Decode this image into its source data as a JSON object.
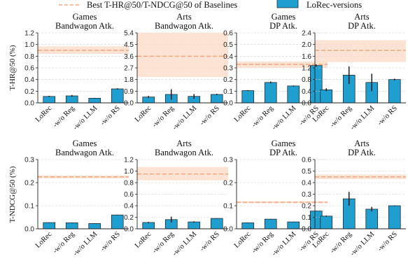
{
  "legend": {
    "baseline_label": "Best T-HR@50/T-NDCG@50 of Baselines",
    "bars_label": "LoRec-versions"
  },
  "colors": {
    "bar": "#1f9fcf",
    "baseline_line": "#f4a57e",
    "baseline_band": "#fbd9c4"
  },
  "y_labels": [
    "T-HR@50 (%)",
    "T-NDCG@50 (%)"
  ],
  "chart_data": [
    {
      "type": "bar",
      "row": 0,
      "title": [
        "Games",
        "Bandwagon Atk."
      ],
      "categories": [
        "LoRec",
        "-w/o Reg",
        "-w/o LLM",
        "-w/o RS"
      ],
      "values": [
        0.11,
        0.12,
        0.08,
        0.24
      ],
      "errors": [
        0.01,
        0.015,
        0.005,
        0.01
      ],
      "baseline": 0.9,
      "baseline_band": [
        0.84,
        0.97
      ],
      "ylim": [
        0,
        1.2
      ],
      "yticks": [
        0,
        0.2,
        0.4,
        0.6,
        0.8,
        1.0,
        1.2
      ],
      "ytick_labels": [
        "0.0",
        "0.2",
        "0.4",
        "0.6",
        "0.8",
        "1.0",
        "1.2"
      ]
    },
    {
      "type": "bar",
      "row": 0,
      "title": [
        "Arts",
        "Bandwagon Atk."
      ],
      "categories": [
        "LoRec",
        "-w/o Reg",
        "-w/o LLM",
        "-w/o RS"
      ],
      "values": [
        0.45,
        0.65,
        0.5,
        0.65
      ],
      "errors": [
        0.08,
        0.4,
        0.18,
        0.05
      ],
      "baseline": 3.6,
      "baseline_band": [
        2.0,
        5.4
      ],
      "ylim": [
        0,
        5.4
      ],
      "yticks": [
        0,
        0.9,
        1.8,
        2.7,
        3.6,
        4.5,
        5.4
      ],
      "ytick_labels": [
        "0.0",
        "0.9",
        "1.8",
        "2.7",
        "3.6",
        "4.5",
        "5.4"
      ]
    },
    {
      "type": "bar",
      "row": 0,
      "title": [
        "Games",
        "DP Atk."
      ],
      "categories": [
        "LoRec",
        "-w/o Reg",
        "-w/o LLM",
        "-w/o RS"
      ],
      "values": [
        0.105,
        0.175,
        0.145,
        0.32
      ],
      "errors": [
        0.004,
        0.008,
        0.004,
        0.01
      ],
      "baseline": 0.33,
      "baseline_band": [
        0.3,
        0.355
      ],
      "ylim": [
        0,
        0.6
      ],
      "yticks": [
        0,
        0.1,
        0.2,
        0.3,
        0.4,
        0.5,
        0.6
      ],
      "ytick_labels": [
        "0.0",
        "0.1",
        "0.2",
        "0.3",
        "0.4",
        "0.5",
        "0.6"
      ]
    },
    {
      "type": "bar",
      "row": 0,
      "title": [
        "Arts",
        "DP Atk."
      ],
      "categories": [
        "LoRec",
        "-w/o Reg",
        "-w/o LLM",
        "-w/o RS"
      ],
      "values": [
        0.45,
        0.95,
        0.7,
        0.8
      ],
      "errors": [
        0.05,
        0.3,
        0.3,
        0.03
      ],
      "baseline": 1.8,
      "baseline_band": [
        1.4,
        2.15
      ],
      "ylim": [
        0,
        2.4
      ],
      "yticks": [
        0,
        0.4,
        0.8,
        1.2,
        1.6,
        2.0,
        2.4
      ],
      "ytick_labels": [
        "0.0",
        "0.4",
        "0.8",
        "1.2",
        "1.6",
        "2.0",
        "2.4"
      ]
    },
    {
      "type": "bar",
      "row": 1,
      "title": [
        "Games",
        "Bandwagon Atk."
      ],
      "categories": [
        "LoRec",
        "-w/o Reg",
        "-w/o LLM",
        "-w/o RS"
      ],
      "values": [
        0.027,
        0.026,
        0.023,
        0.06
      ],
      "errors": [
        0.001,
        0.001,
        0.001,
        0.001
      ],
      "baseline": 0.225,
      "baseline_band": [
        0.219,
        0.231
      ],
      "ylim": [
        0,
        0.3
      ],
      "yticks": [
        0,
        0.1,
        0.2,
        0.3
      ],
      "ytick_labels": [
        "0.0",
        "0.1",
        "0.2",
        "0.3"
      ]
    },
    {
      "type": "bar",
      "row": 1,
      "title": [
        "Arts",
        "Bandwagon Atk."
      ],
      "categories": [
        "LoRec",
        "-w/o Reg",
        "-w/o LLM",
        "-w/o RS"
      ],
      "values": [
        0.11,
        0.16,
        0.12,
        0.18
      ],
      "errors": [
        0.01,
        0.05,
        0.01,
        0.005
      ],
      "baseline": 0.95,
      "baseline_band": [
        0.84,
        1.07
      ],
      "ylim": [
        0,
        1.2
      ],
      "yticks": [
        0,
        0.2,
        0.4,
        0.6,
        0.8,
        1.0,
        1.2
      ],
      "ytick_labels": [
        "0.0",
        "0.2",
        "0.4",
        "0.6",
        "0.8",
        "1.0",
        "1.2"
      ]
    },
    {
      "type": "bar",
      "row": 1,
      "title": [
        "Games",
        "DP Atk."
      ],
      "categories": [
        "LoRec",
        "-w/o Reg",
        "-w/o LLM",
        "-w/o RS"
      ],
      "values": [
        0.026,
        0.042,
        0.03,
        0.077
      ],
      "errors": [
        0.001,
        0.001,
        0.001,
        0.001
      ],
      "baseline": 0.115,
      "baseline_band": [
        0.111,
        0.119
      ],
      "ylim": [
        0,
        0.3
      ],
      "yticks": [
        0,
        0.1,
        0.2,
        0.3
      ],
      "ytick_labels": [
        "0.0",
        "0.1",
        "0.2",
        "0.3"
      ]
    },
    {
      "type": "bar",
      "row": 1,
      "title": [
        "Arts",
        "DP Atk."
      ],
      "categories": [
        "LoRec",
        "-w/o Reg",
        "-w/o LLM",
        "-w/o RS"
      ],
      "values": [
        0.11,
        0.26,
        0.17,
        0.2
      ],
      "errors": [
        0.005,
        0.06,
        0.02,
        0.003
      ],
      "baseline": 0.45,
      "baseline_band": [
        0.43,
        0.47
      ],
      "ylim": [
        0,
        0.6
      ],
      "yticks": [
        0,
        0.1,
        0.2,
        0.3,
        0.4,
        0.5,
        0.6
      ],
      "ytick_labels": [
        "0.0",
        "0.1",
        "0.2",
        "0.3",
        "0.4",
        "0.5",
        "0.6"
      ]
    }
  ]
}
